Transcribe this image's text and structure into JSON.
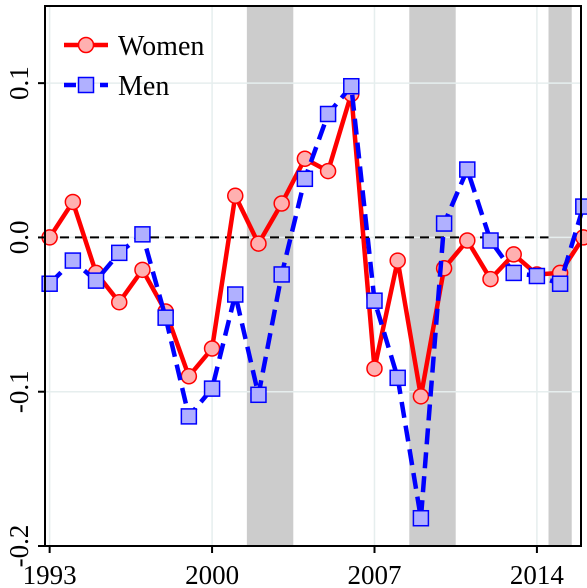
{
  "chart_data": {
    "type": "line",
    "title": "",
    "xlabel": "",
    "ylabel": "",
    "xlim": [
      1992.8,
      2015.9
    ],
    "ylim": [
      -0.2,
      0.15
    ],
    "x_ticks": [
      1993,
      2000,
      2007,
      2014
    ],
    "x_tick_labels": [
      "1993",
      "2000",
      "2007",
      "2014"
    ],
    "y_ticks": [
      -0.2,
      -0.1,
      0.0,
      0.1
    ],
    "y_tick_labels": [
      "-0.2",
      "-0.1",
      "0.0",
      "0.1"
    ],
    "grid": true,
    "legend_position": "top-left",
    "reference_line": {
      "y": 0.0,
      "style": "dashed",
      "x_end": 2014.5
    },
    "shaded_periods": [
      [
        2001.5,
        2003.5
      ],
      [
        2008.5,
        2010.5
      ],
      [
        2014.5,
        2015.5
      ]
    ],
    "x": [
      1993,
      1994,
      1995,
      1996,
      1997,
      1998,
      1999,
      2000,
      2001,
      2002,
      2003,
      2004,
      2005,
      2006,
      2007,
      2008,
      2009,
      2010,
      2011,
      2012,
      2013,
      2014,
      2015,
      2016
    ],
    "series": [
      {
        "name": "Women",
        "color": "#ff0000",
        "marker_fill": "#ffb0b0",
        "marker": "circle",
        "line_style": "solid",
        "values": [
          0.0,
          0.023,
          -0.023,
          -0.042,
          -0.021,
          -0.048,
          -0.09,
          -0.072,
          0.027,
          -0.004,
          0.022,
          0.051,
          0.043,
          0.093,
          -0.085,
          -0.015,
          -0.103,
          -0.02,
          -0.002,
          -0.027,
          -0.011,
          -0.024,
          -0.023,
          0.0
        ]
      },
      {
        "name": "Men",
        "color": "#0000ff",
        "marker_fill": "#b0b0ff",
        "marker": "square",
        "line_style": "dashed",
        "values": [
          -0.03,
          -0.015,
          -0.028,
          -0.01,
          0.002,
          -0.052,
          -0.116,
          -0.098,
          -0.037,
          -0.102,
          -0.024,
          0.038,
          0.08,
          0.098,
          -0.041,
          -0.091,
          -0.182,
          0.009,
          0.044,
          -0.002,
          -0.023,
          -0.025,
          -0.03,
          0.02
        ]
      }
    ]
  }
}
